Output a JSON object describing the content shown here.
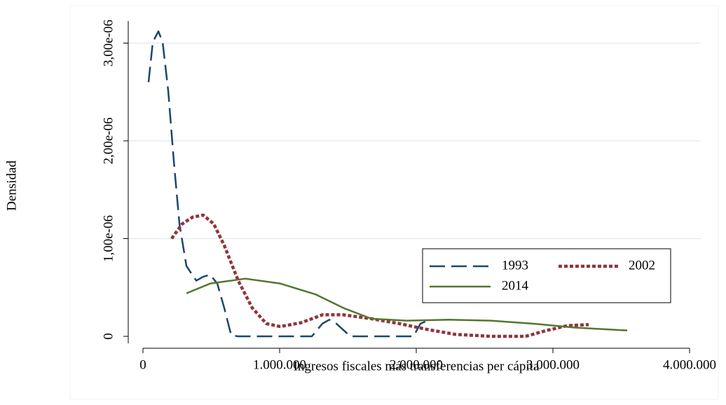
{
  "chart_data": {
    "type": "line",
    "x_label": "Ingresos fiscales más transferencias per cápita",
    "y_label": "Densidad",
    "xlim": [
      0,
      4000000
    ],
    "xticks": [
      0,
      {
        "value": 1000000,
        "label": "1.000.000"
      },
      {
        "value": 2000000,
        "label": "2.000.000"
      },
      {
        "value": 3000000,
        "label": "3.000.000"
      },
      {
        "value": 4000000,
        "label": "4.000.000"
      }
    ],
    "ylim": [
      0,
      3.1e-06
    ],
    "yticks": [
      0,
      {
        "value": 1e-06,
        "label": "1,00e-06"
      },
      {
        "value": 2e-06,
        "label": "2,00e-06"
      },
      {
        "value": 3e-06,
        "label": "3,00e-06"
      }
    ],
    "grid": true,
    "legend": "bottom-right",
    "series": [
      {
        "name": "1993",
        "color": "#1a476f",
        "dash": "22,9",
        "x": [
          41000,
          72000,
          113000,
          144000,
          185000,
          226000,
          267000,
          318000,
          390000,
          441000,
          492000,
          544000,
          595000,
          646000,
          697000,
          1236000,
          1313000,
          1364000,
          1415000,
          1518000,
          1979000,
          2031000,
          2082000
        ],
        "values": [
          2.6e-06,
          3.01e-06,
          3.12e-06,
          3.01e-06,
          2.51e-06,
          1.79e-06,
          1.15e-06,
          7.2e-07,
          5.7e-07,
          6.1e-07,
          6.3e-07,
          5.4e-07,
          2.9e-07,
          1e-08,
          0,
          0,
          1.3e-07,
          1.7e-07,
          1.3e-07,
          0,
          0,
          1.3e-07,
          1.6e-07
        ]
      },
      {
        "name": "2002",
        "color": "#90353b",
        "dash": "5,3",
        "x": [
          210000,
          287000,
          364000,
          441000,
          518000,
          595000,
          697000,
          800000,
          903000,
          1005000,
          1159000,
          1313000,
          1467000,
          1672000,
          1877000,
          2082000,
          2287000,
          2544000,
          2800000,
          2954000,
          3108000,
          3262000
        ],
        "values": [
          1e-06,
          1.15e-06,
          1.22e-06,
          1.24e-06,
          1.15e-06,
          9.3e-07,
          5.7e-07,
          2.9e-07,
          1.3e-07,
          1e-07,
          1.4e-07,
          2.2e-07,
          2.2e-07,
          1.8e-07,
          1.3e-07,
          7e-08,
          2e-08,
          0,
          0,
          6e-08,
          1.1e-07,
          1.2e-07
        ]
      },
      {
        "name": "2014",
        "color": "#55752f",
        "dash": "",
        "x": [
          318000,
          492000,
          749000,
          1005000,
          1262000,
          1467000,
          1672000,
          1928000,
          2236000,
          2544000,
          2851000,
          3159000,
          3544000
        ],
        "values": [
          4.4e-07,
          5.4e-07,
          5.9e-07,
          5.4e-07,
          4.3e-07,
          2.9e-07,
          1.8e-07,
          1.6e-07,
          1.7e-07,
          1.6e-07,
          1.3e-07,
          9e-08,
          6e-08
        ]
      }
    ]
  }
}
